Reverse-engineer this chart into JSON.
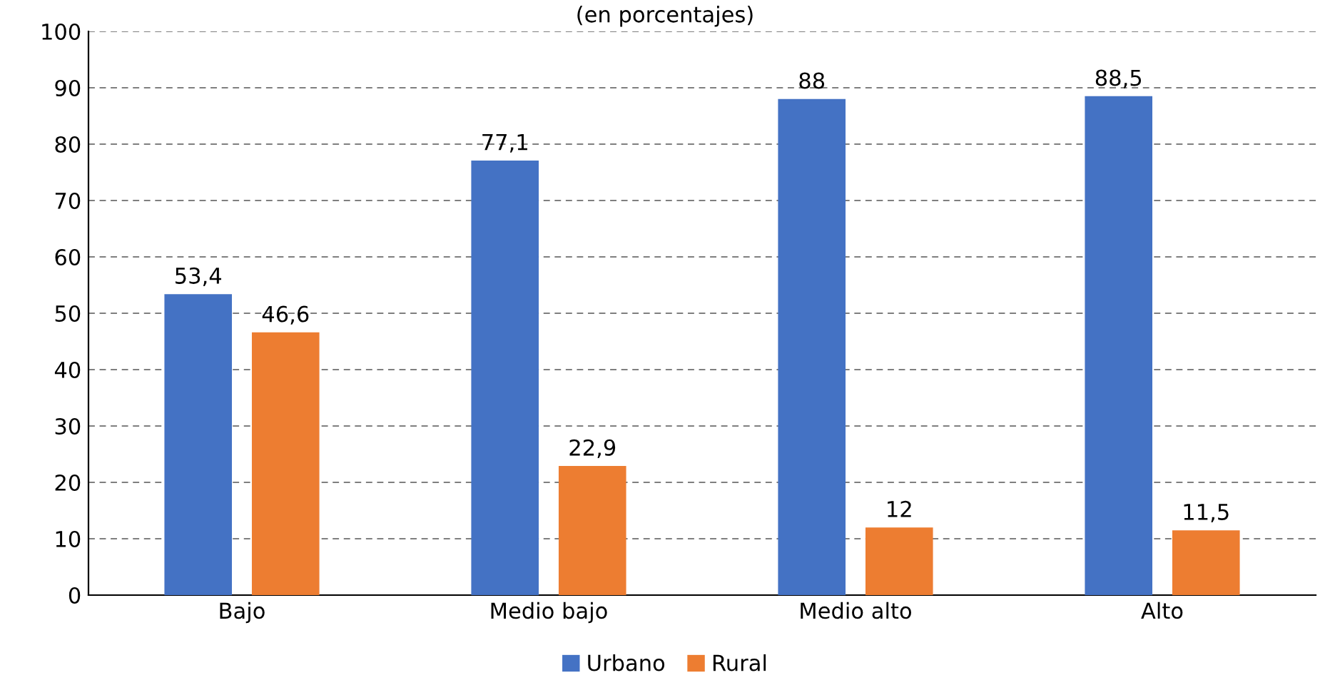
{
  "chart_data": {
    "type": "bar",
    "subtitle": "(en porcentajes)",
    "categories": [
      "Bajo",
      "Medio bajo",
      "Medio alto",
      "Alto"
    ],
    "series": [
      {
        "name": "Urbano",
        "color": "#4472c4",
        "values": [
          53.4,
          77.1,
          88,
          88.5
        ],
        "value_labels": [
          "53,4",
          "77,1",
          "88",
          "88,5"
        ]
      },
      {
        "name": "Rural",
        "color": "#ed7d31",
        "values": [
          46.6,
          22.9,
          12,
          11.5
        ],
        "value_labels": [
          "46,6",
          "22,9",
          "12",
          "11,5"
        ]
      }
    ],
    "ylim": [
      0,
      100
    ],
    "yticks": [
      0,
      10,
      20,
      30,
      40,
      50,
      60,
      70,
      80,
      90,
      100
    ],
    "grid": "y",
    "legend": "bottom"
  }
}
